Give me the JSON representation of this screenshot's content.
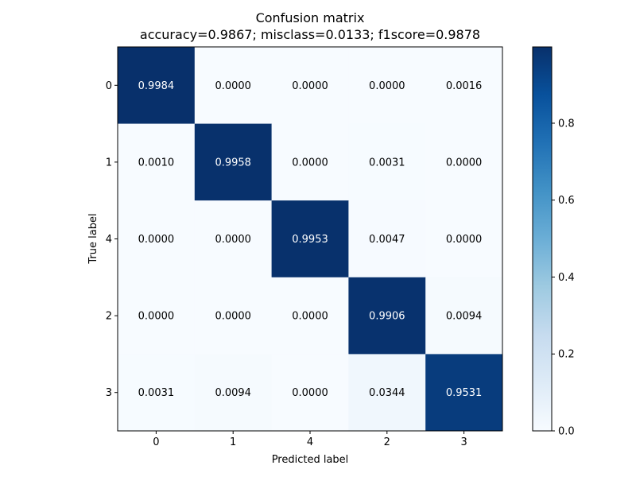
{
  "chart_data": {
    "type": "heatmap",
    "title": "Confusion matrix",
    "subtitle": "accuracy=0.9867; misclass=0.0133; f1score=0.9878",
    "xlabel": "Predicted label",
    "ylabel": "True label",
    "x_categories": [
      "0",
      "1",
      "4",
      "2",
      "3"
    ],
    "y_categories": [
      "0",
      "1",
      "4",
      "2",
      "3"
    ],
    "values": [
      [
        0.9984,
        0.0,
        0.0,
        0.0,
        0.0016
      ],
      [
        0.001,
        0.9958,
        0.0,
        0.0031,
        0.0
      ],
      [
        0.0,
        0.0,
        0.9953,
        0.0047,
        0.0
      ],
      [
        0.0,
        0.0,
        0.0,
        0.9906,
        0.0094
      ],
      [
        0.0031,
        0.0094,
        0.0,
        0.0344,
        0.9531
      ]
    ],
    "value_labels": [
      [
        "0.9984",
        "0.0000",
        "0.0000",
        "0.0000",
        "0.0016"
      ],
      [
        "0.0010",
        "0.9958",
        "0.0000",
        "0.0031",
        "0.0000"
      ],
      [
        "0.0000",
        "0.0000",
        "0.9953",
        "0.0047",
        "0.0000"
      ],
      [
        "0.0000",
        "0.0000",
        "0.0000",
        "0.9906",
        "0.0094"
      ],
      [
        "0.0031",
        "0.0094",
        "0.0000",
        "0.0344",
        "0.9531"
      ]
    ],
    "colormap": "Blues",
    "color_range": [
      0,
      0.9984
    ],
    "colorbar": {
      "ticks": [
        0.0,
        0.2,
        0.4,
        0.6,
        0.8
      ],
      "tick_labels": [
        "0.0",
        "0.2",
        "0.4",
        "0.6",
        "0.8"
      ]
    },
    "text_color_light": "#ffffff",
    "text_color_dark": "#000000",
    "grid": false
  }
}
